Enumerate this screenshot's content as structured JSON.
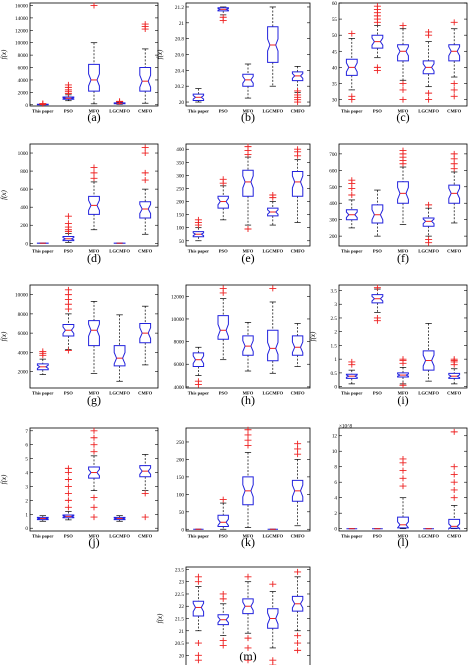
{
  "figure": {
    "categories": [
      "This paper",
      "PSO",
      "MFO",
      "LGCMFO",
      "CMFO"
    ],
    "ylabel": "f(x)",
    "colors": {
      "box": "#2222dd",
      "median": "#ee2222",
      "outlier": "#ee2222",
      "whisker": "#000000",
      "frame": "#000000"
    }
  },
  "chart_data": [
    {
      "type": "box",
      "label": "(a)",
      "ylabel": "f(x)",
      "ylim": [
        -200,
        16400
      ],
      "yticks": [
        0,
        2000,
        4000,
        6000,
        8000,
        10000,
        12000,
        14000,
        16000
      ],
      "categories": [
        "This paper",
        "PSO",
        "MFO",
        "LGCMFO",
        "CMFO"
      ],
      "boxes": [
        {
          "min": 0,
          "q1": 10,
          "median": 40,
          "q3": 80,
          "max": 140,
          "outliers": [
            160,
            200
          ]
        },
        {
          "min": 650,
          "q1": 900,
          "median": 1050,
          "q3": 1250,
          "max": 1600,
          "outliers": [
            1800,
            2100,
            2400,
            2800,
            3200
          ]
        },
        {
          "min": 150,
          "q1": 2200,
          "median": 4000,
          "q3": 6500,
          "max": 10000,
          "outliers": [
            16000
          ]
        },
        {
          "min": 80,
          "q1": 150,
          "median": 220,
          "q3": 300,
          "max": 420,
          "outliers": [
            480,
            560
          ]
        },
        {
          "min": 250,
          "q1": 2200,
          "median": 3800,
          "q3": 6000,
          "max": 9000,
          "outliers": [
            12200,
            12600,
            13000
          ]
        }
      ]
    },
    {
      "type": "box",
      "label": "(b)",
      "ylabel": "f(x)",
      "ylim": [
        19.95,
        21.25
      ],
      "yticks": [
        20,
        20.2,
        20.4,
        20.6,
        20.8,
        21,
        21.2
      ],
      "categories": [
        "This paper",
        "PSO",
        "MFO",
        "LGCMFO",
        "CMFO"
      ],
      "boxes": [
        {
          "min": 20.0,
          "q1": 20.02,
          "median": 20.06,
          "q3": 20.1,
          "max": 20.17,
          "outliers": []
        },
        {
          "min": 21.1,
          "q1": 21.15,
          "median": 21.17,
          "q3": 21.19,
          "max": 21.2,
          "outliers": [
            21.03,
            21.07
          ]
        },
        {
          "min": 20.05,
          "q1": 20.2,
          "median": 20.28,
          "q3": 20.35,
          "max": 20.48,
          "outliers": []
        },
        {
          "min": 20.2,
          "q1": 20.5,
          "median": 20.72,
          "q3": 20.95,
          "max": 21.2,
          "outliers": []
        },
        {
          "min": 20.12,
          "q1": 20.27,
          "median": 20.33,
          "q3": 20.38,
          "max": 20.45,
          "outliers": [
            20.0,
            20.03,
            20.06,
            20.09,
            20.14
          ]
        }
      ]
    },
    {
      "type": "box",
      "label": "(c)",
      "ylabel": "",
      "ylim": [
        28,
        60
      ],
      "yticks": [
        30,
        35,
        40,
        45,
        50,
        55,
        60
      ],
      "categories": [
        "This paper",
        "PSO",
        "MFO",
        "LGCMFO",
        "CMFO"
      ],
      "boxes": [
        {
          "min": 33,
          "q1": 37.5,
          "median": 40,
          "q3": 42.5,
          "max": 49,
          "outliers": [
            31,
            30,
            50.5
          ]
        },
        {
          "min": 43,
          "q1": 46,
          "median": 48,
          "q3": 50,
          "max": 53,
          "outliers": [
            54,
            55,
            56,
            57,
            58,
            59,
            40,
            39
          ]
        },
        {
          "min": 36,
          "q1": 42,
          "median": 45,
          "q3": 47,
          "max": 52,
          "outliers": [
            53,
            35,
            33,
            30
          ]
        },
        {
          "min": 34,
          "q1": 38,
          "median": 40,
          "q3": 42,
          "max": 48,
          "outliers": [
            50,
            51,
            32,
            30
          ]
        },
        {
          "min": 37,
          "q1": 42,
          "median": 45,
          "q3": 47,
          "max": 52,
          "outliers": [
            54,
            35,
            33,
            31
          ]
        }
      ]
    },
    {
      "type": "box",
      "label": "(d)",
      "ylabel": "f(x)",
      "ylim": [
        -30,
        1100
      ],
      "yticks": [
        0,
        200,
        400,
        600,
        800,
        1000
      ],
      "categories": [
        "This paper",
        "PSO",
        "MFO",
        "LGCMFO",
        "CMFO"
      ],
      "boxes": [
        {
          "min": 0,
          "q1": 0,
          "median": 1,
          "q3": 2,
          "max": 4,
          "outliers": []
        },
        {
          "min": 10,
          "q1": 30,
          "median": 50,
          "q3": 75,
          "max": 110,
          "outliers": [
            130,
            150,
            180,
            220,
            300
          ]
        },
        {
          "min": 150,
          "q1": 320,
          "median": 420,
          "q3": 520,
          "max": 680,
          "outliers": [
            720,
            780,
            840
          ]
        },
        {
          "min": 0,
          "q1": 0,
          "median": 1,
          "q3": 2,
          "max": 3,
          "outliers": []
        },
        {
          "min": 100,
          "q1": 280,
          "median": 380,
          "q3": 460,
          "max": 600,
          "outliers": [
            700,
            780,
            1000,
            1060
          ]
        }
      ]
    },
    {
      "type": "box",
      "label": "(e)",
      "ylabel": "",
      "ylim": [
        30,
        420
      ],
      "yticks": [
        50,
        100,
        150,
        200,
        250,
        300,
        350,
        400
      ],
      "categories": [
        "This paper",
        "PSO",
        "MFO",
        "LGCMFO",
        "CMFO"
      ],
      "boxes": [
        {
          "min": 50,
          "q1": 65,
          "median": 75,
          "q3": 85,
          "max": 100,
          "outliers": [
            110,
            120,
            130
          ]
        },
        {
          "min": 130,
          "q1": 175,
          "median": 200,
          "q3": 220,
          "max": 260,
          "outliers": [
            270,
            285
          ]
        },
        {
          "min": 110,
          "q1": 220,
          "median": 275,
          "q3": 320,
          "max": 370,
          "outliers": [
            95,
            380,
            395,
            410
          ]
        },
        {
          "min": 110,
          "q1": 145,
          "median": 160,
          "q3": 175,
          "max": 200,
          "outliers": [
            215,
            225
          ]
        },
        {
          "min": 120,
          "q1": 220,
          "median": 275,
          "q3": 315,
          "max": 360,
          "outliers": [
            375,
            390,
            400
          ]
        }
      ]
    },
    {
      "type": "box",
      "label": "(f)",
      "ylabel": "",
      "ylim": [
        140,
        760
      ],
      "yticks": [
        200,
        300,
        400,
        500,
        600,
        700
      ],
      "categories": [
        "This paper",
        "PSO",
        "MFO",
        "LGCMFO",
        "CMFO"
      ],
      "boxes": [
        {
          "min": 250,
          "q1": 300,
          "median": 330,
          "q3": 360,
          "max": 420,
          "outliers": [
            450,
            490,
            520,
            540
          ]
        },
        {
          "min": 200,
          "q1": 280,
          "median": 330,
          "q3": 390,
          "max": 480,
          "outliers": []
        },
        {
          "min": 270,
          "q1": 400,
          "median": 460,
          "q3": 530,
          "max": 620,
          "outliers": [
            640,
            660,
            680,
            700,
            720
          ]
        },
        {
          "min": 200,
          "q1": 260,
          "median": 290,
          "q3": 310,
          "max": 370,
          "outliers": [
            390,
            180,
            160
          ]
        },
        {
          "min": 280,
          "q1": 400,
          "median": 460,
          "q3": 510,
          "max": 590,
          "outliers": [
            610,
            640,
            670,
            700
          ]
        }
      ]
    },
    {
      "type": "box",
      "label": "(g)",
      "ylabel": "f(x)",
      "ylim": [
        300,
        11000
      ],
      "yticks": [
        2000,
        4000,
        6000,
        8000,
        10000
      ],
      "categories": [
        "This paper",
        "PSO",
        "MFO",
        "LGCMFO",
        "CMFO"
      ],
      "boxes": [
        {
          "min": 1700,
          "q1": 2200,
          "median": 2500,
          "q3": 2800,
          "max": 3300,
          "outliers": [
            3700,
            3900,
            4100
          ]
        },
        {
          "min": 4300,
          "q1": 5700,
          "median": 6300,
          "q3": 6900,
          "max": 8000,
          "outliers": [
            8500,
            9000,
            9500,
            10000,
            10500,
            4200
          ]
        },
        {
          "min": 1800,
          "q1": 4700,
          "median": 6300,
          "q3": 7300,
          "max": 9300,
          "outliers": []
        },
        {
          "min": 1000,
          "q1": 2600,
          "median": 3400,
          "q3": 4700,
          "max": 7900,
          "outliers": []
        },
        {
          "min": 2700,
          "q1": 5000,
          "median": 6000,
          "q3": 7000,
          "max": 8800,
          "outliers": []
        }
      ]
    },
    {
      "type": "box",
      "label": "(h)",
      "ylabel": "",
      "ylim": [
        3900,
        13000
      ],
      "yticks": [
        4000,
        6000,
        8000,
        10000,
        12000
      ],
      "categories": [
        "This paper",
        "PSO",
        "MFO",
        "LGCMFO",
        "CMFO"
      ],
      "boxes": [
        {
          "min": 5000,
          "q1": 5800,
          "median": 6400,
          "q3": 7000,
          "max": 7500,
          "outliers": [
            4500,
            4200
          ]
        },
        {
          "min": 6400,
          "q1": 8200,
          "median": 9000,
          "q3": 10300,
          "max": 11800,
          "outliers": [
            12300,
            12700
          ]
        },
        {
          "min": 5400,
          "q1": 6800,
          "median": 7600,
          "q3": 8500,
          "max": 9700,
          "outliers": []
        },
        {
          "min": 5200,
          "q1": 6300,
          "median": 7400,
          "q3": 9000,
          "max": 11500,
          "outliers": [
            12700
          ]
        },
        {
          "min": 5800,
          "q1": 6800,
          "median": 7500,
          "q3": 8500,
          "max": 9600,
          "outliers": []
        }
      ]
    },
    {
      "type": "box",
      "label": "(i)",
      "ylabel": "f(x)",
      "ylim": [
        -0.05,
        3.7
      ],
      "yticks": [
        0,
        0.5,
        1,
        1.5,
        2,
        2.5,
        3,
        3.5
      ],
      "categories": [
        "This paper",
        "PSO",
        "MFO",
        "LGCMFO",
        "CMFO"
      ],
      "boxes": [
        {
          "min": 0.1,
          "q1": 0.3,
          "median": 0.38,
          "q3": 0.45,
          "max": 0.6,
          "outliers": [
            0.8,
            0.9
          ]
        },
        {
          "min": 2.7,
          "q1": 3.05,
          "median": 3.2,
          "q3": 3.35,
          "max": 3.55,
          "outliers": [
            2.5,
            2.4,
            3.6
          ]
        },
        {
          "min": 0.1,
          "q1": 0.35,
          "median": 0.42,
          "q3": 0.5,
          "max": 0.7,
          "outliers": [
            0.85,
            0.95,
            1.0,
            0.05
          ]
        },
        {
          "min": 0.2,
          "q1": 0.6,
          "median": 0.95,
          "q3": 1.3,
          "max": 2.3,
          "outliers": []
        },
        {
          "min": 0.1,
          "q1": 0.3,
          "median": 0.38,
          "q3": 0.48,
          "max": 0.65,
          "outliers": [
            0.8,
            0.9,
            0.95,
            1.0
          ]
        }
      ]
    },
    {
      "type": "box",
      "label": "(j)",
      "ylabel": "f(x)",
      "ylim": [
        -0.2,
        7.2
      ],
      "yticks": [
        0,
        1,
        2,
        3,
        4,
        5,
        6,
        7
      ],
      "categories": [
        "This paper",
        "PSO",
        "MFO",
        "LGCMFO",
        "CMFO"
      ],
      "boxes": [
        {
          "min": 0.5,
          "q1": 0.62,
          "median": 0.7,
          "q3": 0.78,
          "max": 0.9,
          "outliers": []
        },
        {
          "min": 0.6,
          "q1": 0.75,
          "median": 0.85,
          "q3": 0.95,
          "max": 1.2,
          "outliers": [
            1.5,
            2.0,
            2.5,
            3.0,
            3.5,
            4.0,
            4.3
          ]
        },
        {
          "min": 2.7,
          "q1": 3.6,
          "median": 4.0,
          "q3": 4.4,
          "max": 5.2,
          "outliers": [
            5.5,
            6.0,
            6.5,
            7.0,
            2.2,
            1.5,
            0.8
          ]
        },
        {
          "min": 0.5,
          "q1": 0.62,
          "median": 0.7,
          "q3": 0.78,
          "max": 0.9,
          "outliers": []
        },
        {
          "min": 2.7,
          "q1": 3.7,
          "median": 4.1,
          "q3": 4.5,
          "max": 5.3,
          "outliers": [
            2.5,
            0.8
          ]
        }
      ]
    },
    {
      "type": "box",
      "label": "(k)",
      "ylabel": "",
      "ylim": [
        -5,
        290
      ],
      "yticks": [
        0,
        50,
        100,
        150,
        200,
        250
      ],
      "categories": [
        "This paper",
        "PSO",
        "MFO",
        "LGCMFO",
        "CMFO"
      ],
      "boxes": [
        {
          "min": 0,
          "q1": 0,
          "median": 0,
          "q3": 0,
          "max": 0,
          "outliers": []
        },
        {
          "min": 0,
          "q1": 8,
          "median": 20,
          "q3": 40,
          "max": 75,
          "outliers": [
            85
          ]
        },
        {
          "min": 5,
          "q1": 70,
          "median": 110,
          "q3": 150,
          "max": 220,
          "outliers": [
            240,
            255,
            270,
            285
          ]
        },
        {
          "min": 0,
          "q1": 0,
          "median": 0,
          "q3": 0,
          "max": 0,
          "outliers": []
        },
        {
          "min": 10,
          "q1": 80,
          "median": 110,
          "q3": 140,
          "max": 200,
          "outliers": [
            215,
            230,
            245
          ]
        }
      ]
    },
    {
      "type": "box",
      "label": "(l)",
      "ylabel": "",
      "yscale_note": "×10^8",
      "ylim": [
        -0.3,
        13
      ],
      "yticks": [
        0,
        2,
        4,
        6,
        8,
        10,
        12
      ],
      "categories": [
        "This paper",
        "PSO",
        "MFO",
        "LGCMFO",
        "CMFO"
      ],
      "boxes": [
        {
          "min": 0,
          "q1": 0,
          "median": 0,
          "q3": 0,
          "max": 0,
          "outliers": []
        },
        {
          "min": 0,
          "q1": 0,
          "median": 0,
          "q3": 0,
          "max": 0,
          "outliers": []
        },
        {
          "min": 0,
          "q1": 0.1,
          "median": 0.5,
          "q3": 1.5,
          "max": 4,
          "outliers": [
            5.5,
            6.5,
            7.5,
            8.5,
            9
          ]
        },
        {
          "min": 0,
          "q1": 0,
          "median": 0,
          "q3": 0,
          "max": 0,
          "outliers": []
        },
        {
          "min": 0,
          "q1": 0.05,
          "median": 0.3,
          "q3": 1.2,
          "max": 3,
          "outliers": [
            4,
            5,
            6,
            7,
            8,
            12.5
          ]
        }
      ]
    },
    {
      "type": "box",
      "label": "(m)",
      "ylabel": "f(x)",
      "ylim": [
        19.4,
        23.6
      ],
      "yticks": [
        19.5,
        20,
        20.5,
        21,
        21.5,
        22,
        22.5,
        23,
        23.5
      ],
      "categories": [
        "This paper",
        "PSO",
        "MFO",
        "LGCMFO",
        "CMFO"
      ],
      "boxes": [
        {
          "min": 21.0,
          "q1": 21.6,
          "median": 21.95,
          "q3": 22.2,
          "max": 22.8,
          "outliers": [
            23.0,
            23.2,
            20.5,
            20.0,
            19.8
          ]
        },
        {
          "min": 20.8,
          "q1": 21.25,
          "median": 21.45,
          "q3": 21.65,
          "max": 22.1,
          "outliers": [
            22.3,
            22.5,
            20.6,
            20.4
          ]
        },
        {
          "min": 20.9,
          "q1": 21.7,
          "median": 22.0,
          "q3": 22.3,
          "max": 23.0,
          "outliers": [
            23.2,
            20.7,
            20.3,
            19.8
          ]
        },
        {
          "min": 20.3,
          "q1": 21.1,
          "median": 21.5,
          "q3": 21.9,
          "max": 22.6,
          "outliers": [
            22.9,
            19.8,
            19.6
          ]
        },
        {
          "min": 21.0,
          "q1": 21.8,
          "median": 22.1,
          "q3": 22.4,
          "max": 23.2,
          "outliers": [
            23.4,
            20.8,
            20.5,
            20.2
          ]
        }
      ]
    }
  ]
}
